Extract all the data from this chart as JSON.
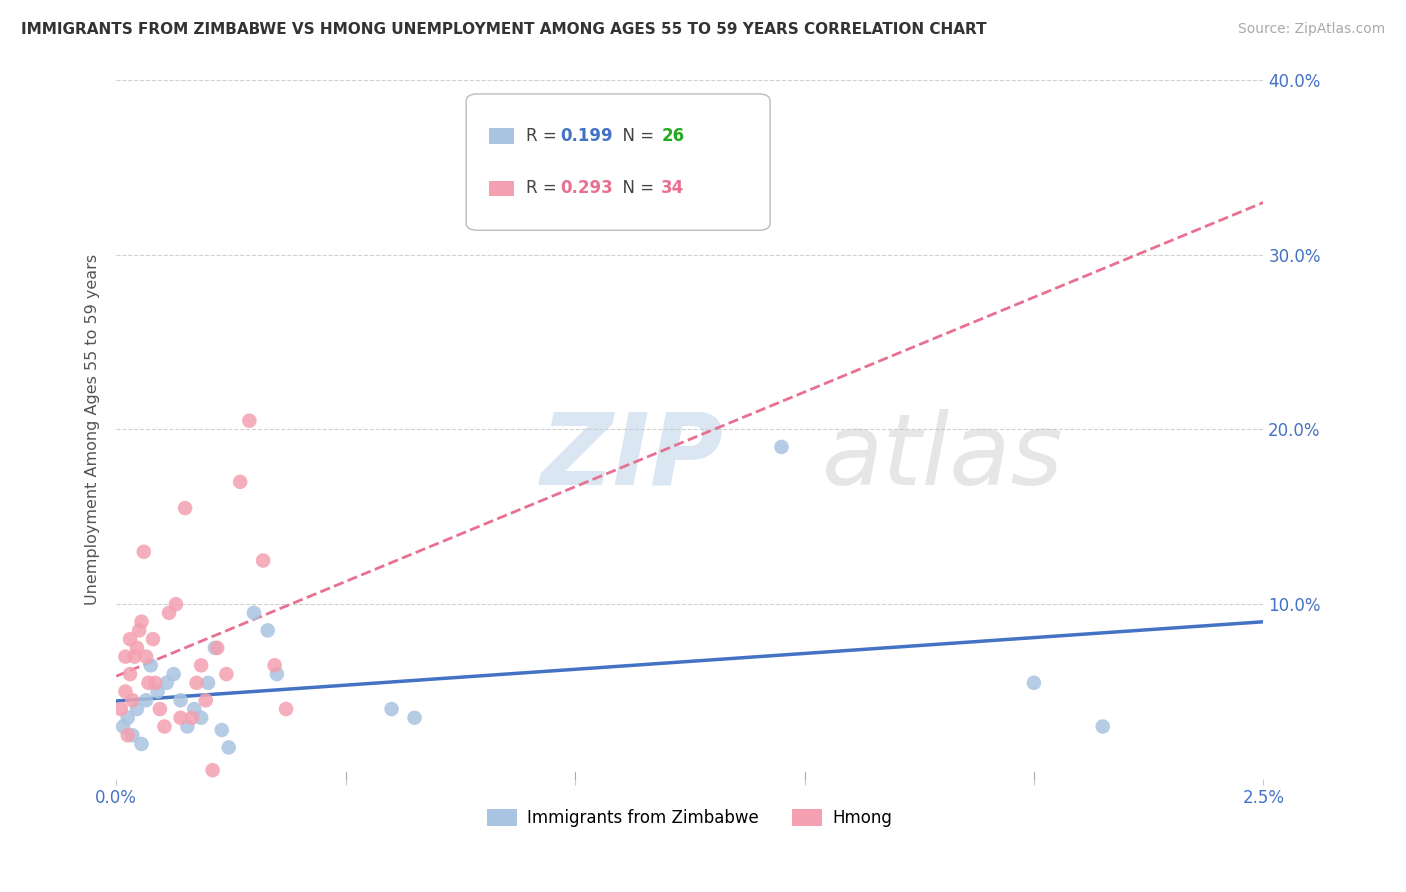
{
  "title": "IMMIGRANTS FROM ZIMBABWE VS HMONG UNEMPLOYMENT AMONG AGES 55 TO 59 YEARS CORRELATION CHART",
  "source": "Source: ZipAtlas.com",
  "ylabel": "Unemployment Among Ages 55 to 59 years",
  "xlim": [
    0.0,
    0.025
  ],
  "ylim": [
    0.0,
    0.4
  ],
  "xticks": [
    0.0,
    0.005,
    0.01,
    0.015,
    0.02,
    0.025
  ],
  "xticklabels": [
    "0.0%",
    "",
    "",
    "",
    "",
    "2.5%"
  ],
  "yticks_right": [
    0.0,
    0.1,
    0.2,
    0.3,
    0.4
  ],
  "ytick_right_labels": [
    "",
    "10.0%",
    "20.0%",
    "30.0%",
    "40.0%"
  ],
  "r_zimbabwe": 0.199,
  "n_zimbabwe": 26,
  "r_hmong": 0.293,
  "n_hmong": 34,
  "color_zimbabwe": "#a8c4e0",
  "color_hmong": "#f4a0b0",
  "color_trendline_zimbabwe": "#4472c4",
  "color_trendline_hmong": "#e87090",
  "legend_label_zimbabwe": "Immigrants from Zimbabwe",
  "legend_label_hmong": "Hmong",
  "watermark_zip": "ZIP",
  "watermark_atlas": "atlas",
  "zimbabwe_x": [
    0.00015,
    0.00025,
    0.00035,
    0.00045,
    0.00055,
    0.00065,
    0.00075,
    0.0009,
    0.0011,
    0.00125,
    0.0014,
    0.00155,
    0.0017,
    0.00185,
    0.002,
    0.00215,
    0.0023,
    0.00245,
    0.003,
    0.0033,
    0.0035,
    0.006,
    0.0065,
    0.0145,
    0.02,
    0.0215
  ],
  "zimbabwe_y": [
    0.03,
    0.035,
    0.025,
    0.04,
    0.02,
    0.045,
    0.065,
    0.05,
    0.055,
    0.06,
    0.045,
    0.03,
    0.04,
    0.035,
    0.055,
    0.075,
    0.028,
    0.018,
    0.095,
    0.085,
    0.06,
    0.04,
    0.035,
    0.19,
    0.055,
    0.03
  ],
  "hmong_x": [
    0.0001,
    0.0002,
    0.0002,
    0.00025,
    0.0003,
    0.0003,
    0.00035,
    0.0004,
    0.00045,
    0.0005,
    0.00055,
    0.0006,
    0.00065,
    0.0007,
    0.0008,
    0.00085,
    0.00095,
    0.00105,
    0.00115,
    0.0013,
    0.0014,
    0.0015,
    0.00165,
    0.00175,
    0.00185,
    0.00195,
    0.0021,
    0.0022,
    0.0024,
    0.0027,
    0.0029,
    0.0032,
    0.00345,
    0.0037
  ],
  "hmong_y": [
    0.04,
    0.05,
    0.07,
    0.025,
    0.06,
    0.08,
    0.045,
    0.07,
    0.075,
    0.085,
    0.09,
    0.13,
    0.07,
    0.055,
    0.08,
    0.055,
    0.04,
    0.03,
    0.095,
    0.1,
    0.035,
    0.155,
    0.035,
    0.055,
    0.065,
    0.045,
    0.005,
    0.075,
    0.06,
    0.17,
    0.205,
    0.125,
    0.065,
    0.04
  ],
  "background_color": "#ffffff",
  "grid_color": "#d0d0d0",
  "n_color_zimbabwe": "#22aa22",
  "n_color_hmong": "#e87090",
  "r_color_zimbabwe": "#4472c4",
  "r_color_hmong": "#e87090"
}
